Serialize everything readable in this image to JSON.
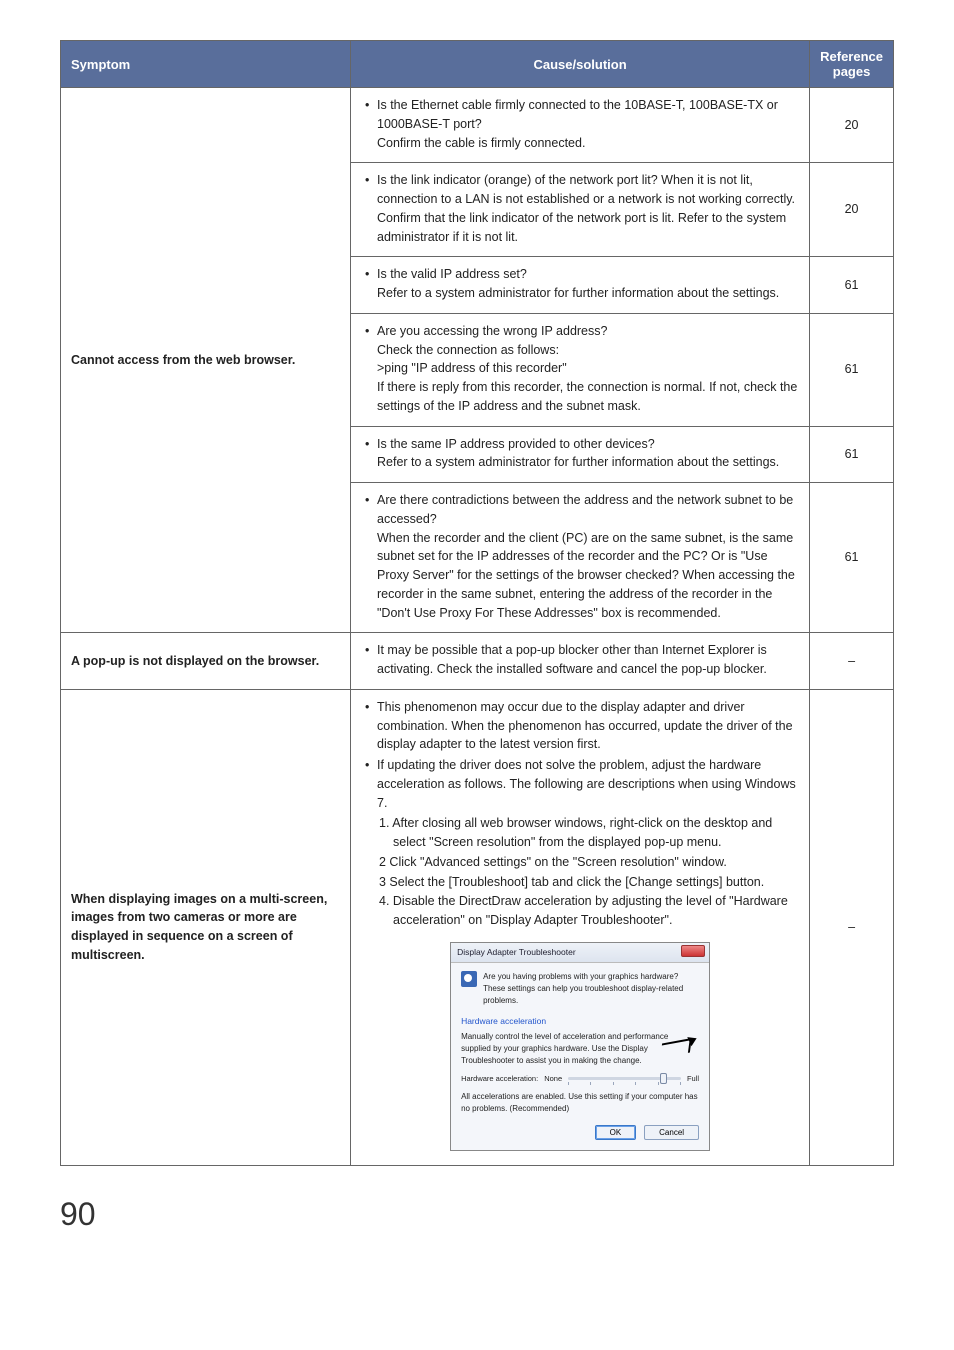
{
  "table": {
    "header_bg": "#596e9b",
    "headers": {
      "symptom": "Symptom",
      "cause": "Cause/solution",
      "ref": "Reference pages"
    },
    "col_widths": {
      "symptom": 290,
      "ref": 80
    },
    "body_font_size": 12.5,
    "border_color": "#666666"
  },
  "rows": [
    {
      "symptom": "Cannot access from the web browser.",
      "causes": [
        {
          "text": "Is the Ethernet cable firmly connected to the 10BASE-T, 100BASE-TX or 1000BASE-T port?\nConfirm the cable is firmly connected.",
          "ref": "20"
        },
        {
          "text": "Is the link indicator (orange) of the network port lit? When it is not lit, connection to a LAN is not established or a network is not working correctly.\nConfirm that the link indicator of the network port is lit. Refer to the system administrator if it is not lit.",
          "ref": "20"
        },
        {
          "text": "Is the valid IP address set?\nRefer to a system administrator for further information about the settings.",
          "ref": "61"
        },
        {
          "text": "Are you accessing the wrong IP address?\nCheck the connection as follows:\n>ping \"IP address of this recorder\"\nIf there is reply from this recorder, the connection is normal. If not, check the settings of the IP address and the subnet mask.",
          "ref": "61"
        },
        {
          "text": "Is the same IP address provided to other devices?\nRefer to a system administrator for further information about the settings.",
          "ref": "61"
        },
        {
          "text": "Are there contradictions between the address and the network subnet to be accessed?\nWhen the recorder and the client (PC) are on the same subnet, is the same subnet set for the IP addresses of the recorder and the PC? Or is \"Use Proxy Server\" for the settings of the browser checked? When accessing the recorder in the same subnet, entering the address of the recorder in the \"Don't Use Proxy For These Addresses\" box is recommended.",
          "ref": "61"
        }
      ]
    },
    {
      "symptom": "A pop-up is not displayed on the browser.",
      "causes": [
        {
          "text": "It may be possible that a pop-up blocker other than Internet Explorer is activating. Check the installed software and cancel the pop-up blocker.",
          "ref": "–"
        }
      ]
    },
    {
      "symptom": "When displaying images on a multi-screen, images from two cameras or more are displayed in sequence on a screen of multiscreen.",
      "causes": [
        {
          "bullets": [
            "This phenomenon may occur due to the display adapter and driver combination. When the phenomenon has occurred, update the driver of the display adapter to the latest version first.",
            "If updating the driver does not solve the problem, adjust the hardware acceleration as follows. The following are descriptions when using Windows 7."
          ],
          "steps": [
            "1. After closing all web browser windows, right-click on the desktop and select \"Screen resolution\" from the displayed pop-up menu.",
            "2  Click \"Advanced settings\" on the \"Screen resolution\" window.",
            "3  Select the [Troubleshoot] tab and click the [Change settings] button.",
            "4. Disable the DirectDraw acceleration by adjusting the level of \"Hardware acceleration\" on \"Display Adapter Troubleshooter\"."
          ],
          "ref": "–",
          "dialog": true
        }
      ]
    }
  ],
  "dialog": {
    "title": "Display Adapter Troubleshooter",
    "info": "Are you having problems with your graphics hardware? These settings can help you troubleshoot display-related problems.",
    "section": "Hardware acceleration",
    "desc": "Manually control the level of acceleration and performance supplied by your graphics hardware. Use the Display Troubleshooter to assist you in making the change.",
    "slider_label": "Hardware acceleration:",
    "slider_min": "None",
    "slider_max": "Full",
    "note": "All accelerations are enabled. Use this setting if your computer has no problems. (Recommended)",
    "ok": "OK",
    "cancel": "Cancel"
  },
  "page_number": "90"
}
